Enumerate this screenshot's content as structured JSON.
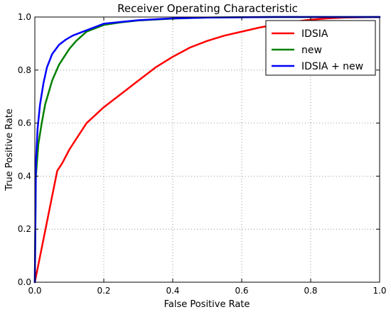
{
  "chart_data": {
    "type": "line",
    "title": "Receiver Operating Characteristic",
    "xlabel": "False Positive Rate",
    "ylabel": "True Positive Rate",
    "xlim": [
      0.0,
      1.0
    ],
    "ylim": [
      0.0,
      1.0
    ],
    "xticks": [
      "0.0",
      "0.2",
      "0.4",
      "0.6",
      "0.8",
      "1.0"
    ],
    "yticks": [
      "0.0",
      "0.2",
      "0.4",
      "0.6",
      "0.8",
      "1.0"
    ],
    "grid": true,
    "legend_position": "top-right",
    "series": [
      {
        "name": "IDSIA",
        "color": "#ff0000",
        "x": [
          0.0,
          0.065,
          0.08,
          0.1,
          0.12,
          0.15,
          0.2,
          0.25,
          0.3,
          0.35,
          0.4,
          0.45,
          0.5,
          0.55,
          0.6,
          0.65,
          0.7,
          0.75,
          0.8,
          0.85,
          0.9,
          1.0
        ],
        "y": [
          0.0,
          0.42,
          0.45,
          0.5,
          0.54,
          0.6,
          0.66,
          0.71,
          0.76,
          0.81,
          0.85,
          0.885,
          0.91,
          0.93,
          0.945,
          0.96,
          0.972,
          0.982,
          0.99,
          0.995,
          0.998,
          1.0
        ]
      },
      {
        "name": "new",
        "color": "#008000",
        "x": [
          0.0,
          0.003,
          0.01,
          0.02,
          0.03,
          0.05,
          0.07,
          0.1,
          0.12,
          0.15,
          0.2,
          0.25,
          0.3,
          0.4,
          0.5,
          0.7,
          1.0
        ],
        "y": [
          0.0,
          0.4,
          0.52,
          0.6,
          0.67,
          0.76,
          0.82,
          0.88,
          0.91,
          0.945,
          0.97,
          0.98,
          0.987,
          0.994,
          0.998,
          1.0,
          1.0
        ]
      },
      {
        "name": "IDSIA + new",
        "color": "#0000ff",
        "x": [
          0.0,
          0.003,
          0.008,
          0.015,
          0.025,
          0.035,
          0.05,
          0.07,
          0.09,
          0.11,
          0.15,
          0.2,
          0.3,
          0.4,
          0.5,
          0.7,
          1.0
        ],
        "y": [
          0.0,
          0.45,
          0.58,
          0.67,
          0.75,
          0.81,
          0.86,
          0.895,
          0.915,
          0.93,
          0.95,
          0.975,
          0.988,
          0.995,
          0.998,
          1.0,
          1.0
        ]
      }
    ]
  }
}
